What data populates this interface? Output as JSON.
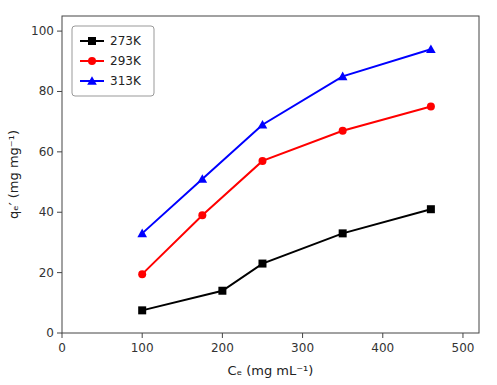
{
  "chart_data": {
    "type": "line",
    "xlabel": "Cₑ (mg mL⁻¹)",
    "ylabel": "qₑ′ (mg mg⁻¹)",
    "xlim": [
      0,
      520
    ],
    "ylim": [
      0,
      105
    ],
    "xticks": [
      0,
      100,
      200,
      300,
      400,
      500
    ],
    "yticks": [
      0,
      20,
      40,
      60,
      80,
      100
    ],
    "grid": false,
    "legend": "upper left",
    "series": [
      {
        "name": "273K",
        "color": "black",
        "marker": "square",
        "x": [
          100,
          200,
          250,
          350,
          460
        ],
        "values": [
          7.5,
          14,
          23,
          33,
          41
        ]
      },
      {
        "name": "293K",
        "color": "red",
        "marker": "circle",
        "x": [
          100,
          175,
          250,
          350,
          460
        ],
        "values": [
          19.5,
          39,
          57,
          67,
          75
        ]
      },
      {
        "name": "313K",
        "color": "blue",
        "marker": "triangle",
        "x": [
          100,
          175,
          250,
          350,
          460
        ],
        "values": [
          33,
          51,
          69,
          85,
          94
        ]
      }
    ]
  }
}
